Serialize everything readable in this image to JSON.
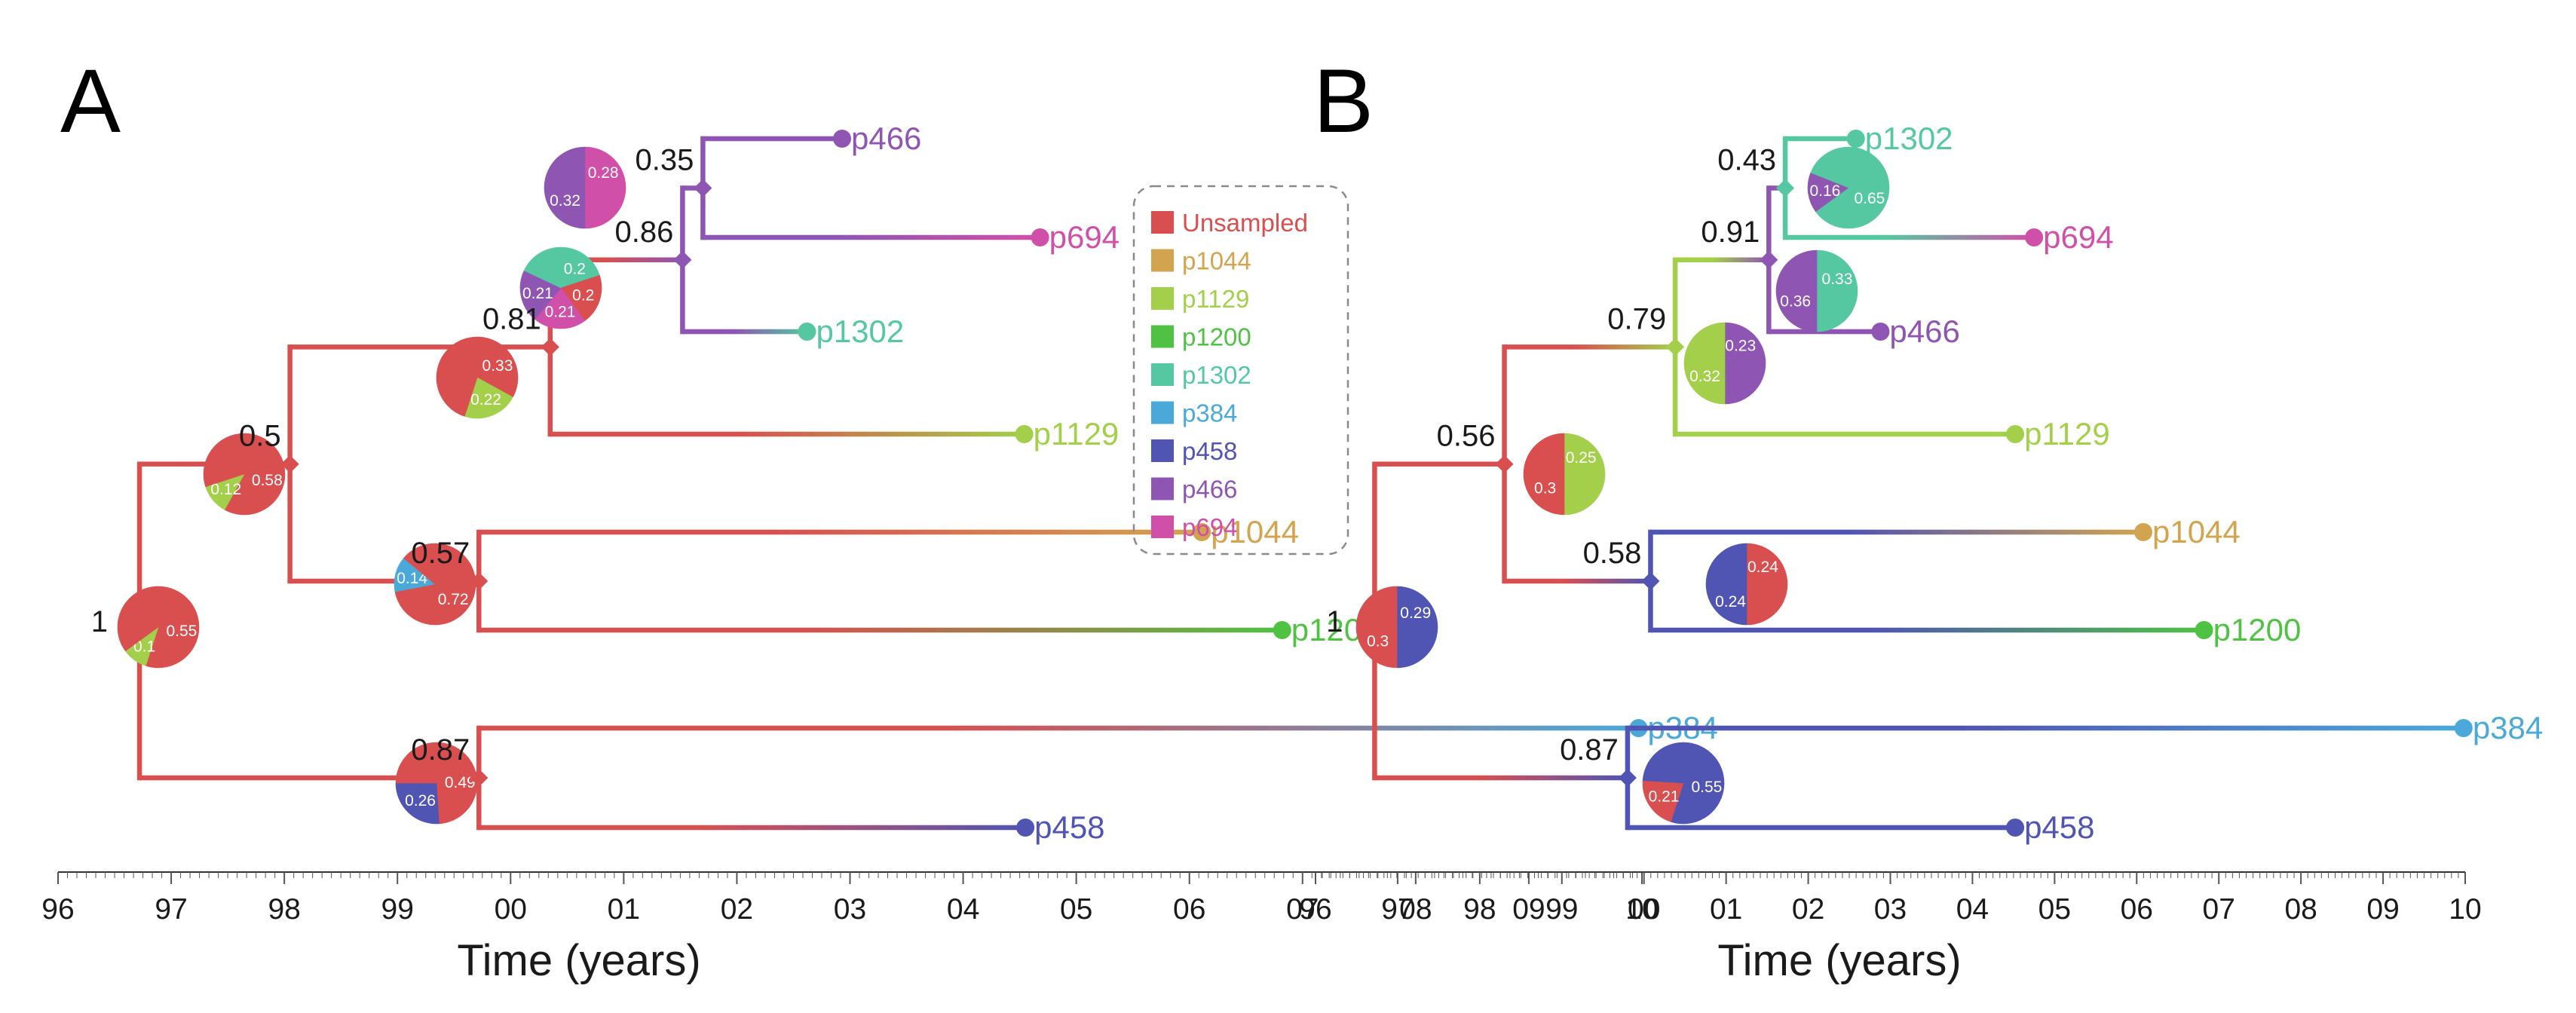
{
  "colors": {
    "Unsampled": "#d94f4f",
    "p1044": "#d2a450",
    "p1129": "#a3cf4a",
    "p1200": "#4fc244",
    "p1302": "#55c8a1",
    "p384": "#4aa9d9",
    "p458": "#5054b2",
    "p466": "#8e55b2",
    "p694": "#d04fa8"
  },
  "legend": [
    "Unsampled",
    "p1044",
    "p1129",
    "p1200",
    "p1302",
    "p384",
    "p458",
    "p466",
    "p694"
  ],
  "axis": {
    "min": 1996,
    "max": 2010,
    "tick_labels": [
      "96",
      "97",
      "98",
      "99",
      "00",
      "01",
      "02",
      "03",
      "04",
      "05",
      "06",
      "07",
      "08",
      "09",
      "10"
    ],
    "title": "Time (years)"
  },
  "panels": [
    {
      "letter": "A",
      "nodes": [
        {
          "id": "root",
          "t": 1996.72,
          "support": "1",
          "parent": null,
          "color": "Unsampled",
          "pie": [
            {
              "c": "Unsampled",
              "v": 0.55,
              "label": "0.55"
            },
            {
              "c": "p1129",
              "v": 0.1,
              "label": "0.1"
            },
            {
              "c": "Unsampled",
              "v": 0.35,
              "label": ""
            }
          ]
        },
        {
          "id": "n05",
          "t": 1998.05,
          "support": "0.5",
          "parent": "root",
          "color": "Unsampled",
          "pie": [
            {
              "c": "Unsampled",
              "v": 0.58,
              "label": "0.58"
            },
            {
              "c": "p1129",
              "v": 0.12,
              "label": "0.12"
            },
            {
              "c": "Unsampled",
              "v": 0.3,
              "label": ""
            }
          ]
        },
        {
          "id": "n081",
          "t": 2000.35,
          "support": "0.81",
          "parent": "n05",
          "color": "Unsampled",
          "pie": [
            {
              "c": "Unsampled",
              "v": 0.33,
              "label": "0.33"
            },
            {
              "c": "p1129",
              "v": 0.22,
              "label": "0.22"
            },
            {
              "c": "Unsampled",
              "v": 0.45,
              "label": ""
            }
          ]
        },
        {
          "id": "n086",
          "t": 2001.52,
          "support": "0.86",
          "parent": "n081",
          "color": "p466",
          "pie": [
            {
              "c": "p1302",
              "v": 0.2,
              "label": "0.2"
            },
            {
              "c": "Unsampled",
              "v": 0.2,
              "label": "0.2"
            },
            {
              "c": "p694",
              "v": 0.21,
              "label": "0.21"
            },
            {
              "c": "p466",
              "v": 0.21,
              "label": "0.21"
            },
            {
              "c": "p1302",
              "v": 0.18,
              "label": ""
            }
          ]
        },
        {
          "id": "n035",
          "t": 2001.7,
          "support": "0.35",
          "parent": "n086",
          "color": "p466",
          "pie": [
            {
              "c": "p694",
              "v": 0.28,
              "label": "0.28"
            },
            {
              "c": "p694",
              "v": 0.22,
              "label": ""
            },
            {
              "c": "p466",
              "v": 0.32,
              "label": "0.32"
            },
            {
              "c": "p466",
              "v": 0.18,
              "label": ""
            }
          ]
        },
        {
          "id": "n057",
          "t": 1999.72,
          "support": "0.57",
          "parent": "n05",
          "color": "Unsampled",
          "pie": [
            {
              "c": "Unsampled",
              "v": 0.72,
              "label": "0.72"
            },
            {
              "c": "p384",
              "v": 0.14,
              "label": "0.14"
            },
            {
              "c": "Unsampled",
              "v": 0.14,
              "label": ""
            }
          ]
        },
        {
          "id": "n087",
          "t": 1999.72,
          "support": "0.87",
          "parent": "root",
          "color": "Unsampled",
          "pie": [
            {
              "c": "Unsampled",
              "v": 0.49,
              "label": "0.49"
            },
            {
              "c": "p458",
              "v": 0.26,
              "label": "0.26"
            },
            {
              "c": "Unsampled",
              "v": 0.25,
              "label": ""
            }
          ]
        }
      ],
      "tips": [
        {
          "name": "p466",
          "t": 2002.93,
          "parent": "n035"
        },
        {
          "name": "p694",
          "t": 2004.68,
          "parent": "n035"
        },
        {
          "name": "p1302",
          "t": 2002.62,
          "parent": "n086"
        },
        {
          "name": "p1129",
          "t": 2004.54,
          "parent": "n081"
        },
        {
          "name": "p1044",
          "t": 2006.11,
          "parent": "n057"
        },
        {
          "name": "p1200",
          "t": 2006.82,
          "parent": "n057"
        },
        {
          "name": "p384",
          "t": 2009.97,
          "parent": "n087"
        },
        {
          "name": "p458",
          "t": 2004.55,
          "parent": "n087"
        }
      ]
    },
    {
      "letter": "B",
      "nodes": [
        {
          "id": "root",
          "t": 1996.72,
          "support": "1",
          "parent": null,
          "color": "Unsampled",
          "pie": [
            {
              "c": "p458",
              "v": 0.29,
              "label": "0.29"
            },
            {
              "c": "p458",
              "v": 0.21,
              "label": ""
            },
            {
              "c": "Unsampled",
              "v": 0.3,
              "label": "0.3"
            },
            {
              "c": "Unsampled",
              "v": 0.2,
              "label": ""
            }
          ]
        },
        {
          "id": "n056",
          "t": 1998.3,
          "support": "0.56",
          "parent": "root",
          "color": "Unsampled",
          "pie": [
            {
              "c": "p1129",
              "v": 0.25,
              "label": "0.25"
            },
            {
              "c": "p1129",
              "v": 0.25,
              "label": ""
            },
            {
              "c": "Unsampled",
              "v": 0.3,
              "label": "0.3"
            },
            {
              "c": "Unsampled",
              "v": 0.2,
              "label": ""
            }
          ]
        },
        {
          "id": "n079",
          "t": 2000.38,
          "support": "0.79",
          "parent": "n056",
          "color": "p1129",
          "pie": [
            {
              "c": "p466",
              "v": 0.23,
              "label": "0.23"
            },
            {
              "c": "p466",
              "v": 0.27,
              "label": ""
            },
            {
              "c": "p1129",
              "v": 0.32,
              "label": "0.32"
            },
            {
              "c": "p1129",
              "v": 0.18,
              "label": ""
            }
          ]
        },
        {
          "id": "n091",
          "t": 2001.52,
          "support": "0.91",
          "parent": "n079",
          "color": "p466",
          "pie": [
            {
              "c": "p1302",
              "v": 0.33,
              "label": "0.33"
            },
            {
              "c": "p1302",
              "v": 0.17,
              "label": ""
            },
            {
              "c": "p466",
              "v": 0.36,
              "label": "0.36"
            },
            {
              "c": "p466",
              "v": 0.14,
              "label": ""
            }
          ]
        },
        {
          "id": "n043",
          "t": 2001.72,
          "support": "0.43",
          "parent": "n091",
          "color": "p1302",
          "pie": [
            {
              "c": "p1302",
              "v": 0.65,
              "label": "0.65"
            },
            {
              "c": "p466",
              "v": 0.16,
              "label": "0.16"
            },
            {
              "c": "p1302",
              "v": 0.19,
              "label": ""
            }
          ]
        },
        {
          "id": "n058",
          "t": 2000.08,
          "support": "0.58",
          "parent": "n056",
          "color": "p458",
          "pie": [
            {
              "c": "Unsampled",
              "v": 0.24,
              "label": "0.24"
            },
            {
              "c": "Unsampled",
              "v": 0.26,
              "label": ""
            },
            {
              "c": "p458",
              "v": 0.24,
              "label": "0.24"
            },
            {
              "c": "p458",
              "v": 0.26,
              "label": ""
            }
          ]
        },
        {
          "id": "n087",
          "t": 1999.8,
          "support": "0.87",
          "parent": "root",
          "color": "p458",
          "pie": [
            {
              "c": "p458",
              "v": 0.55,
              "label": "0.55"
            },
            {
              "c": "Unsampled",
              "v": 0.21,
              "label": "0.21"
            },
            {
              "c": "p458",
              "v": 0.24,
              "label": ""
            }
          ]
        }
      ],
      "tips": [
        {
          "name": "p1302",
          "t": 2002.58,
          "parent": "n043"
        },
        {
          "name": "p694",
          "t": 2004.75,
          "parent": "n043"
        },
        {
          "name": "p466",
          "t": 2002.88,
          "parent": "n091"
        },
        {
          "name": "p1129",
          "t": 2004.52,
          "parent": "n079"
        },
        {
          "name": "p1044",
          "t": 2006.08,
          "parent": "n058"
        },
        {
          "name": "p1200",
          "t": 2006.82,
          "parent": "n058"
        },
        {
          "name": "p384",
          "t": 2009.98,
          "parent": "n087"
        },
        {
          "name": "p458",
          "t": 2004.52,
          "parent": "n087"
        }
      ]
    }
  ]
}
